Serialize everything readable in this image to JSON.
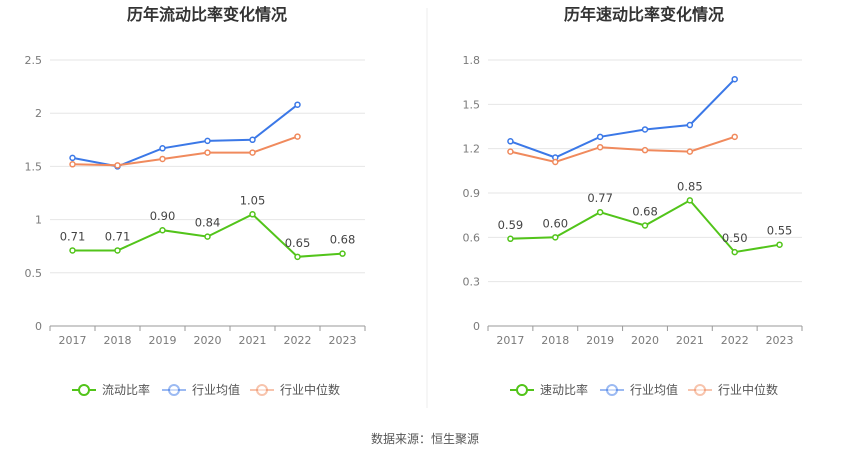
{
  "source_label": "数据来源：恒生聚源",
  "chart_data": [
    {
      "type": "line",
      "title": "历年流动比率变化情况",
      "xlabel": "",
      "ylabel": "",
      "categories": [
        "2017",
        "2018",
        "2019",
        "2020",
        "2021",
        "2022",
        "2023"
      ],
      "ylim": [
        0,
        2.5
      ],
      "yticks": [
        0,
        0.5,
        1,
        1.5,
        2,
        2.5
      ],
      "ytick_labels": [
        "0",
        "0.5",
        "1",
        "1.5",
        "2",
        "2.5"
      ],
      "grid": true,
      "legend_position": "bottom",
      "series": [
        {
          "name": "流动比率",
          "color": "#52c41a",
          "values": [
            0.71,
            0.71,
            0.9,
            0.84,
            1.05,
            0.65,
            0.68
          ],
          "labels": [
            "0.71",
            "0.71",
            "0.90",
            "0.84",
            "1.05",
            "0.65",
            "0.68"
          ]
        },
        {
          "name": "行业均值",
          "color": "#3b78e7",
          "values": [
            1.58,
            1.5,
            1.67,
            1.74,
            1.75,
            2.08,
            null
          ]
        },
        {
          "name": "行业中位数",
          "color": "#f08a5d",
          "values": [
            1.52,
            1.51,
            1.57,
            1.63,
            1.63,
            1.78,
            null
          ]
        }
      ]
    },
    {
      "type": "line",
      "title": "历年速动比率变化情况",
      "xlabel": "",
      "ylabel": "",
      "categories": [
        "2017",
        "2018",
        "2019",
        "2020",
        "2021",
        "2022",
        "2023"
      ],
      "ylim": [
        0,
        1.8
      ],
      "yticks": [
        0,
        0.3,
        0.6,
        0.9,
        1.2,
        1.5,
        1.8
      ],
      "ytick_labels": [
        "0",
        "0.3",
        "0.6",
        "0.9",
        "1.2",
        "1.5",
        "1.8"
      ],
      "grid": true,
      "legend_position": "bottom",
      "series": [
        {
          "name": "速动比率",
          "color": "#52c41a",
          "values": [
            0.59,
            0.6,
            0.77,
            0.68,
            0.85,
            0.5,
            0.55
          ],
          "labels": [
            "0.59",
            "0.60",
            "0.77",
            "0.68",
            "0.85",
            "0.50",
            "0.55"
          ]
        },
        {
          "name": "行业均值",
          "color": "#3b78e7",
          "values": [
            1.25,
            1.14,
            1.28,
            1.33,
            1.36,
            1.67,
            null
          ]
        },
        {
          "name": "行业中位数",
          "color": "#f08a5d",
          "values": [
            1.18,
            1.11,
            1.21,
            1.19,
            1.18,
            1.28,
            null
          ]
        }
      ]
    }
  ]
}
